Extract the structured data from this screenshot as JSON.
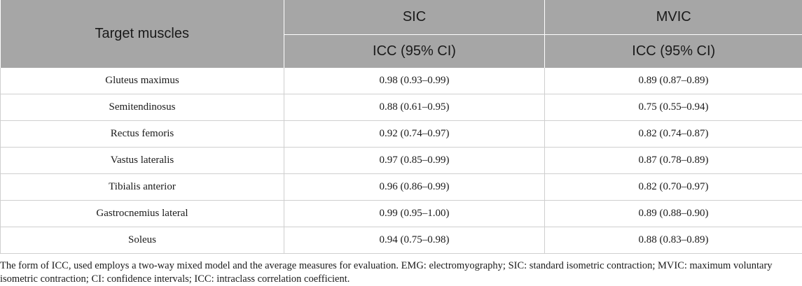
{
  "table": {
    "header": {
      "target_label": "Target muscles",
      "group_sic": "SIC",
      "group_mvic": "MVIC",
      "sub_sic": "ICC (95% CI)",
      "sub_mvic": "ICC (95% CI)"
    },
    "rows": [
      {
        "muscle": "Gluteus maximus",
        "sic": "0.98 (0.93–0.99)",
        "mvic": "0.89 (0.87–0.89)"
      },
      {
        "muscle": "Semitendinosus",
        "sic": "0.88 (0.61–0.95)",
        "mvic": "0.75 (0.55–0.94)"
      },
      {
        "muscle": "Rectus femoris",
        "sic": "0.92 (0.74–0.97)",
        "mvic": "0.82 (0.74–0.87)"
      },
      {
        "muscle": "Vastus lateralis",
        "sic": "0.97 (0.85–0.99)",
        "mvic": "0.87 (0.78–0.89)"
      },
      {
        "muscle": "Tibialis anterior",
        "sic": "0.96 (0.86–0.99)",
        "mvic": "0.82 (0.70–0.97)"
      },
      {
        "muscle": "Gastrocnemius lateral",
        "sic": "0.99 (0.95–1.00)",
        "mvic": "0.89 (0.88–0.90)"
      },
      {
        "muscle": "Soleus",
        "sic": "0.94 (0.75–0.98)",
        "mvic": "0.88 (0.83–0.89)"
      }
    ]
  },
  "footnote": "The form of ICC, used employs a two-way mixed model and the average measures for evaluation. EMG: electromyography; SIC: standard isometric contraction; MVIC: maximum voluntary isometric contraction; CI: confidence intervals; ICC: intraclass correlation coefficient.",
  "colors": {
    "header_bg": "#a6a6a6",
    "grid_line": "#cfcfcf",
    "text": "#1a1a1a"
  }
}
